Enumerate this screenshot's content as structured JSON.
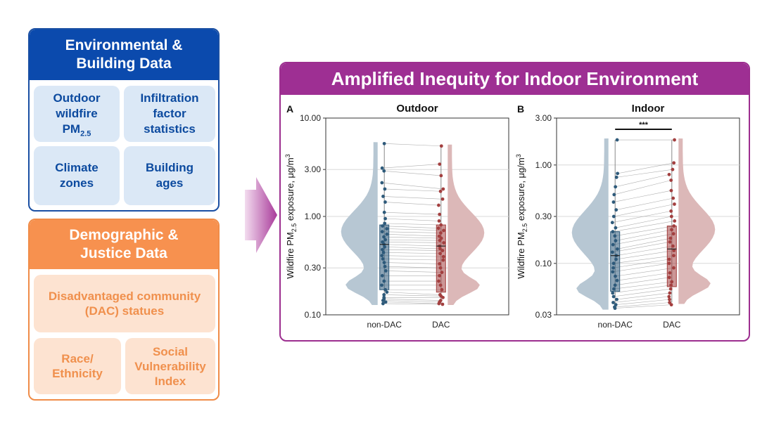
{
  "env": {
    "title_line1": "Environmental &",
    "title_line2": "Building Data",
    "tile_outdoor_l1": "Outdoor",
    "tile_outdoor_l2": "wildfire",
    "tile_outdoor_pm": "PM",
    "tile_outdoor_sub": "2.5",
    "tile_infiltration_l1": "Infiltration",
    "tile_infiltration_l2": "factor",
    "tile_infiltration_l3": "statistics",
    "tile_climate_l1": "Climate",
    "tile_climate_l2": "zones",
    "tile_building_l1": "Building",
    "tile_building_l2": "ages"
  },
  "demo": {
    "title_line1": "Demographic &",
    "title_line2": "Justice Data",
    "tile_dac_l1": "Disadvantaged community",
    "tile_dac_l2": "(DAC) statues",
    "tile_race_l1": "Race/",
    "tile_race_l2": "Ethnicity",
    "tile_svi_l1": "Social",
    "tile_svi_l2": "Vulnerability",
    "tile_svi_l3": "Index"
  },
  "result": {
    "title": "Amplified Inequity for Indoor Environment"
  },
  "colors": {
    "env_blue": "#0b4aad",
    "demo_orange": "#f7914f",
    "result_purple": "#9e2f93",
    "nondac_fill": "#b7c7d3",
    "nondac_point": "#2e5a7a",
    "dac_fill": "#dcb8b8",
    "dac_point": "#a33f3f"
  },
  "chart_data": [
    {
      "type": "violin-box-paired",
      "panel_label": "A",
      "title": "Outdoor",
      "ylabel_main": "Wildfire PM",
      "ylabel_sub": "2.5",
      "ylabel_rest": " exposure, μg/m",
      "ylabel_sup": "3",
      "yscale": "log",
      "ylim": [
        0.1,
        10
      ],
      "yticks": [
        0.1,
        0.3,
        1,
        3,
        10
      ],
      "ytick_labels": [
        "0.10",
        "0.30",
        "1.00",
        "3.00",
        "10.00"
      ],
      "categories": [
        "non-DAC",
        "DAC"
      ],
      "significance": "",
      "box": {
        "non-DAC": {
          "q1": 0.18,
          "median": 0.52,
          "q3": 0.82,
          "min": 0.13,
          "max": 5.5
        },
        "DAC": {
          "q1": 0.17,
          "median": 0.5,
          "q3": 0.82,
          "min": 0.13,
          "max": 5.2
        }
      },
      "pairs": [
        [
          5.5,
          5.2
        ],
        [
          3.1,
          3.4
        ],
        [
          2.9,
          2.6
        ],
        [
          2.2,
          1.9
        ],
        [
          1.9,
          1.8
        ],
        [
          1.6,
          1.5
        ],
        [
          1.4,
          1.3
        ],
        [
          1.1,
          1.05
        ],
        [
          0.95,
          0.9
        ],
        [
          0.85,
          0.82
        ],
        [
          0.8,
          0.76
        ],
        [
          0.75,
          0.72
        ],
        [
          0.7,
          0.68
        ],
        [
          0.66,
          0.63
        ],
        [
          0.62,
          0.6
        ],
        [
          0.58,
          0.57
        ],
        [
          0.55,
          0.54
        ],
        [
          0.52,
          0.5
        ],
        [
          0.49,
          0.47
        ],
        [
          0.46,
          0.45
        ],
        [
          0.43,
          0.42
        ],
        [
          0.4,
          0.39
        ],
        [
          0.37,
          0.36
        ],
        [
          0.34,
          0.33
        ],
        [
          0.31,
          0.3
        ],
        [
          0.28,
          0.27
        ],
        [
          0.25,
          0.25
        ],
        [
          0.22,
          0.22
        ],
        [
          0.2,
          0.2
        ],
        [
          0.18,
          0.18
        ],
        [
          0.17,
          0.16
        ],
        [
          0.16,
          0.155
        ],
        [
          0.15,
          0.15
        ],
        [
          0.145,
          0.14
        ],
        [
          0.14,
          0.135
        ],
        [
          0.135,
          0.13
        ],
        [
          0.13,
          0.128
        ]
      ]
    },
    {
      "type": "violin-box-paired",
      "panel_label": "B",
      "title": "Indoor",
      "ylabel_main": "Wildfire PM",
      "ylabel_sub": "2.5",
      "ylabel_rest": " exposure, μg/m",
      "ylabel_sup": "3",
      "yscale": "log",
      "ylim": [
        0.03,
        3
      ],
      "yticks": [
        0.03,
        0.1,
        0.3,
        1,
        3
      ],
      "ytick_labels": [
        "0.03",
        "0.10",
        "0.30",
        "1.00",
        "3.00"
      ],
      "categories": [
        "non-DAC",
        "DAC"
      ],
      "significance": "***",
      "box": {
        "non-DAC": {
          "q1": 0.052,
          "median": 0.12,
          "q3": 0.21,
          "min": 0.035,
          "max": 1.8
        },
        "DAC": {
          "q1": 0.058,
          "median": 0.14,
          "q3": 0.24,
          "min": 0.04,
          "max": 1.8
        }
      },
      "pairs": [
        [
          1.8,
          1.8
        ],
        [
          0.82,
          1.05
        ],
        [
          0.75,
          0.9
        ],
        [
          0.6,
          0.8
        ],
        [
          0.5,
          0.7
        ],
        [
          0.42,
          0.55
        ],
        [
          0.35,
          0.46
        ],
        [
          0.3,
          0.4
        ],
        [
          0.26,
          0.34
        ],
        [
          0.23,
          0.3
        ],
        [
          0.21,
          0.27
        ],
        [
          0.19,
          0.24
        ],
        [
          0.17,
          0.22
        ],
        [
          0.155,
          0.2
        ],
        [
          0.14,
          0.18
        ],
        [
          0.13,
          0.165
        ],
        [
          0.12,
          0.15
        ],
        [
          0.11,
          0.135
        ],
        [
          0.1,
          0.12
        ],
        [
          0.09,
          0.11
        ],
        [
          0.082,
          0.1
        ],
        [
          0.074,
          0.09
        ],
        [
          0.067,
          0.08
        ],
        [
          0.06,
          0.072
        ],
        [
          0.055,
          0.065
        ],
        [
          0.05,
          0.06
        ],
        [
          0.046,
          0.055
        ],
        [
          0.043,
          0.05
        ],
        [
          0.04,
          0.046
        ],
        [
          0.038,
          0.043
        ],
        [
          0.036,
          0.04
        ],
        [
          0.035,
          0.038
        ]
      ]
    }
  ]
}
